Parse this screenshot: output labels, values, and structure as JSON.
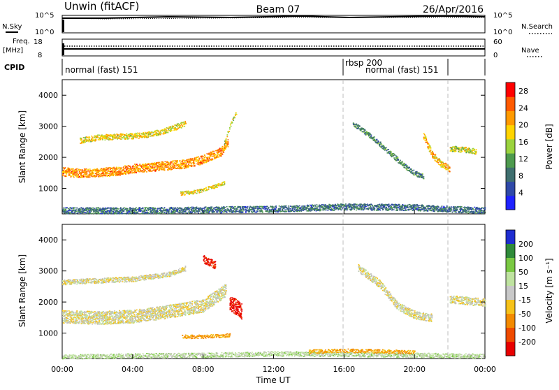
{
  "header": {
    "left": "Unwin (fitACF)",
    "center": "Beam 07",
    "right": "26/Apr/2016"
  },
  "top_panel": {
    "nsky_label": "N.Sky",
    "nsky_ticks": [
      "10^5",
      "10^0"
    ],
    "nsearch_label": "N.Search",
    "nsearch_ticks": [
      "10^5",
      "10^0"
    ],
    "freq_label": "Freq.",
    "freq_unit": "[MHz]",
    "freq_ticks": [
      "18",
      "8"
    ],
    "nave_label": "Nave",
    "nave_ticks": [
      "60",
      "0"
    ],
    "cpid_label": "CPID"
  },
  "cpid": [
    {
      "label": "normal (fast) 151",
      "start_hour": 0
    },
    {
      "label": "rbsp 200",
      "start_hour": 16
    },
    {
      "label": "normal (fast) 151",
      "start_hour": 16
    }
  ],
  "colors": {
    "power": [
      "#1f22ff",
      "#2f49a8",
      "#3f6f6f",
      "#4e9a4e",
      "#9bd33e",
      "#ffd400",
      "#ff9a00",
      "#ff5a00",
      "#ff0000"
    ],
    "velocity": [
      "#1f2dd1",
      "#2f8a3a",
      "#7ac943",
      "#bfe3a0",
      "#c8c8c8",
      "#f6c21a",
      "#f38a00",
      "#ef4b00",
      "#e80000"
    ],
    "velocity_gray": "#c3c3bd",
    "guide": "#bdbdbd"
  },
  "chart_data": [
    {
      "type": "heatmap",
      "title": "",
      "xlabel": "",
      "ylabel": "Slant Range [km]",
      "xlim": [
        0,
        24
      ],
      "ylim": [
        180,
        4500
      ],
      "yticks": [
        1000,
        2000,
        3000,
        4000
      ],
      "colorbar": {
        "label": "Power [dB]",
        "range": [
          0,
          30
        ],
        "ticks": [
          4,
          8,
          12,
          16,
          20,
          24,
          28
        ]
      },
      "features": [
        {
          "desc": "main band",
          "x": [
            0,
            1,
            2,
            3,
            4,
            5,
            6,
            7,
            8,
            9,
            9.4
          ],
          "y": [
            1550,
            1500,
            1520,
            1560,
            1650,
            1700,
            1750,
            1800,
            1950,
            2200,
            2500
          ],
          "width_km": 280,
          "power": 22
        },
        {
          "desc": "band 2",
          "x": [
            1,
            2,
            3,
            4,
            5,
            6,
            7
          ],
          "y": [
            2550,
            2650,
            2680,
            2700,
            2750,
            2900,
            3100
          ],
          "width_km": 180,
          "power": 18
        },
        {
          "desc": "short band",
          "x": [
            6.7,
            7.5,
            8.5,
            9.2
          ],
          "y": [
            850,
            900,
            1050,
            1180
          ],
          "width_km": 120,
          "power": 18
        },
        {
          "desc": "rise",
          "x": [
            9.2,
            9.5,
            9.9
          ],
          "y": [
            2500,
            3000,
            3500
          ],
          "width_km": 120,
          "power": 16
        },
        {
          "desc": "evening arc",
          "x": [
            16.5,
            17.5,
            18.5,
            19.5,
            20,
            20.5
          ],
          "y": [
            3100,
            2700,
            2200,
            1700,
            1500,
            1400
          ],
          "width_km": 160,
          "power": 10
        },
        {
          "desc": "late streak",
          "x": [
            20.5,
            21,
            21.5,
            22
          ],
          "y": [
            2700,
            2100,
            1800,
            1650
          ],
          "width_km": 220,
          "power": 20
        },
        {
          "desc": "after 22 UT",
          "x": [
            22,
            23,
            23.5
          ],
          "y": [
            2300,
            2250,
            2200
          ],
          "width_km": 180,
          "power": 16
        },
        {
          "desc": "near ground",
          "x": [
            0,
            4,
            8,
            12,
            16,
            20,
            22,
            24
          ],
          "y": [
            300,
            300,
            320,
            350,
            420,
            400,
            350,
            300
          ],
          "width_km": 200,
          "power": 8
        }
      ]
    },
    {
      "type": "heatmap",
      "title": "",
      "xlabel": "Time UT",
      "ylabel": "Slant Range [km]",
      "xlim": [
        0,
        24
      ],
      "ylim": [
        180,
        4500
      ],
      "xtick_labels": [
        "00:00",
        "04:00",
        "08:00",
        "12:00",
        "16:00",
        "20:00",
        "00:00"
      ],
      "xticks": [
        0,
        4,
        8,
        12,
        16,
        20,
        24
      ],
      "yticks": [
        1000,
        2000,
        3000,
        4000
      ],
      "colorbar": {
        "label": "Velocity [m s⁻¹]",
        "ticks": [
          200,
          100,
          50,
          15,
          -15,
          -50,
          -100,
          -200
        ]
      },
      "features": [
        {
          "desc": "gray band main",
          "x": [
            0,
            2,
            4,
            6,
            8,
            9.3
          ],
          "y": [
            1550,
            1500,
            1550,
            1700,
            1900,
            2400
          ],
          "width_km": 420,
          "velocity": 0
        },
        {
          "desc": "gray band upper",
          "x": [
            0,
            2,
            4,
            6,
            7
          ],
          "y": [
            2650,
            2700,
            2750,
            2900,
            3100
          ],
          "width_km": 160,
          "velocity": 0
        },
        {
          "desc": "red blob",
          "x": [
            9.5,
            10,
            10.2
          ],
          "y": [
            2000,
            1800,
            1700
          ],
          "width_km": 500,
          "velocity": -220
        },
        {
          "desc": "red top",
          "x": [
            8,
            8.3,
            8.7
          ],
          "y": [
            3400,
            3300,
            3200
          ],
          "width_km": 250,
          "velocity": -200
        },
        {
          "desc": "orange strip",
          "x": [
            6.8,
            8,
            9.5
          ],
          "y": [
            900,
            900,
            950
          ],
          "width_km": 120,
          "velocity": -60
        },
        {
          "desc": "gray evening arc",
          "x": [
            16.8,
            18,
            19,
            20,
            21
          ],
          "y": [
            3100,
            2600,
            1900,
            1600,
            1500
          ],
          "width_km": 250,
          "velocity": 0
        },
        {
          "desc": "gray after 22",
          "x": [
            22,
            23,
            24
          ],
          "y": [
            2100,
            2050,
            2000
          ],
          "width_km": 250,
          "velocity": 0
        },
        {
          "desc": "green low",
          "x": [
            0,
            4,
            8,
            12,
            16,
            20,
            24
          ],
          "y": [
            250,
            280,
            300,
            350,
            330,
            300,
            280
          ],
          "width_km": 150,
          "velocity": 30
        },
        {
          "desc": "orange near ground",
          "x": [
            14,
            16,
            18,
            20
          ],
          "y": [
            420,
            450,
            430,
            400
          ],
          "width_km": 120,
          "velocity": -50
        }
      ]
    }
  ]
}
